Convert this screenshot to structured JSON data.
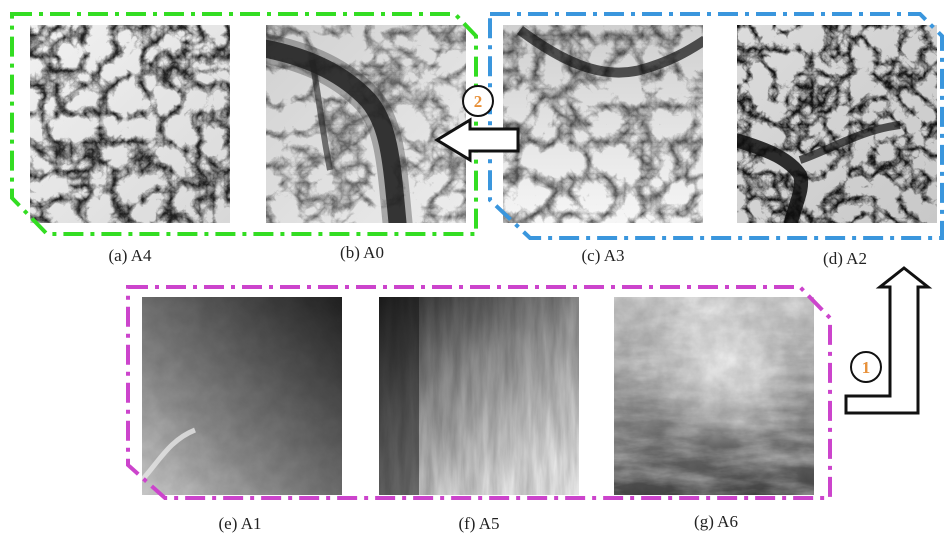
{
  "panels": [
    {
      "id": "a4",
      "caption": "(a) A4",
      "style": "dendritic-dark"
    },
    {
      "id": "a0",
      "caption": "(b) A0",
      "style": "river-curve"
    },
    {
      "id": "a3",
      "caption": "(c) A3",
      "style": "valley-bright"
    },
    {
      "id": "a2",
      "caption": "(d) A2",
      "style": "dendritic-deep"
    },
    {
      "id": "a1",
      "caption": "(e) A1",
      "style": "smooth-gradient"
    },
    {
      "id": "a5",
      "caption": "(f) A5",
      "style": "streaked"
    },
    {
      "id": "a6",
      "caption": "(g) A6",
      "style": "ridged-bright"
    }
  ],
  "groups": [
    {
      "id": "group-green",
      "color": "#33dd22"
    },
    {
      "id": "group-blue",
      "color": "#3a96dd"
    },
    {
      "id": "group-magenta",
      "color": "#cc44cc"
    }
  ],
  "steps": [
    {
      "id": "step-1",
      "label": "1",
      "direction": "up"
    },
    {
      "id": "step-2",
      "label": "2",
      "direction": "left"
    }
  ]
}
